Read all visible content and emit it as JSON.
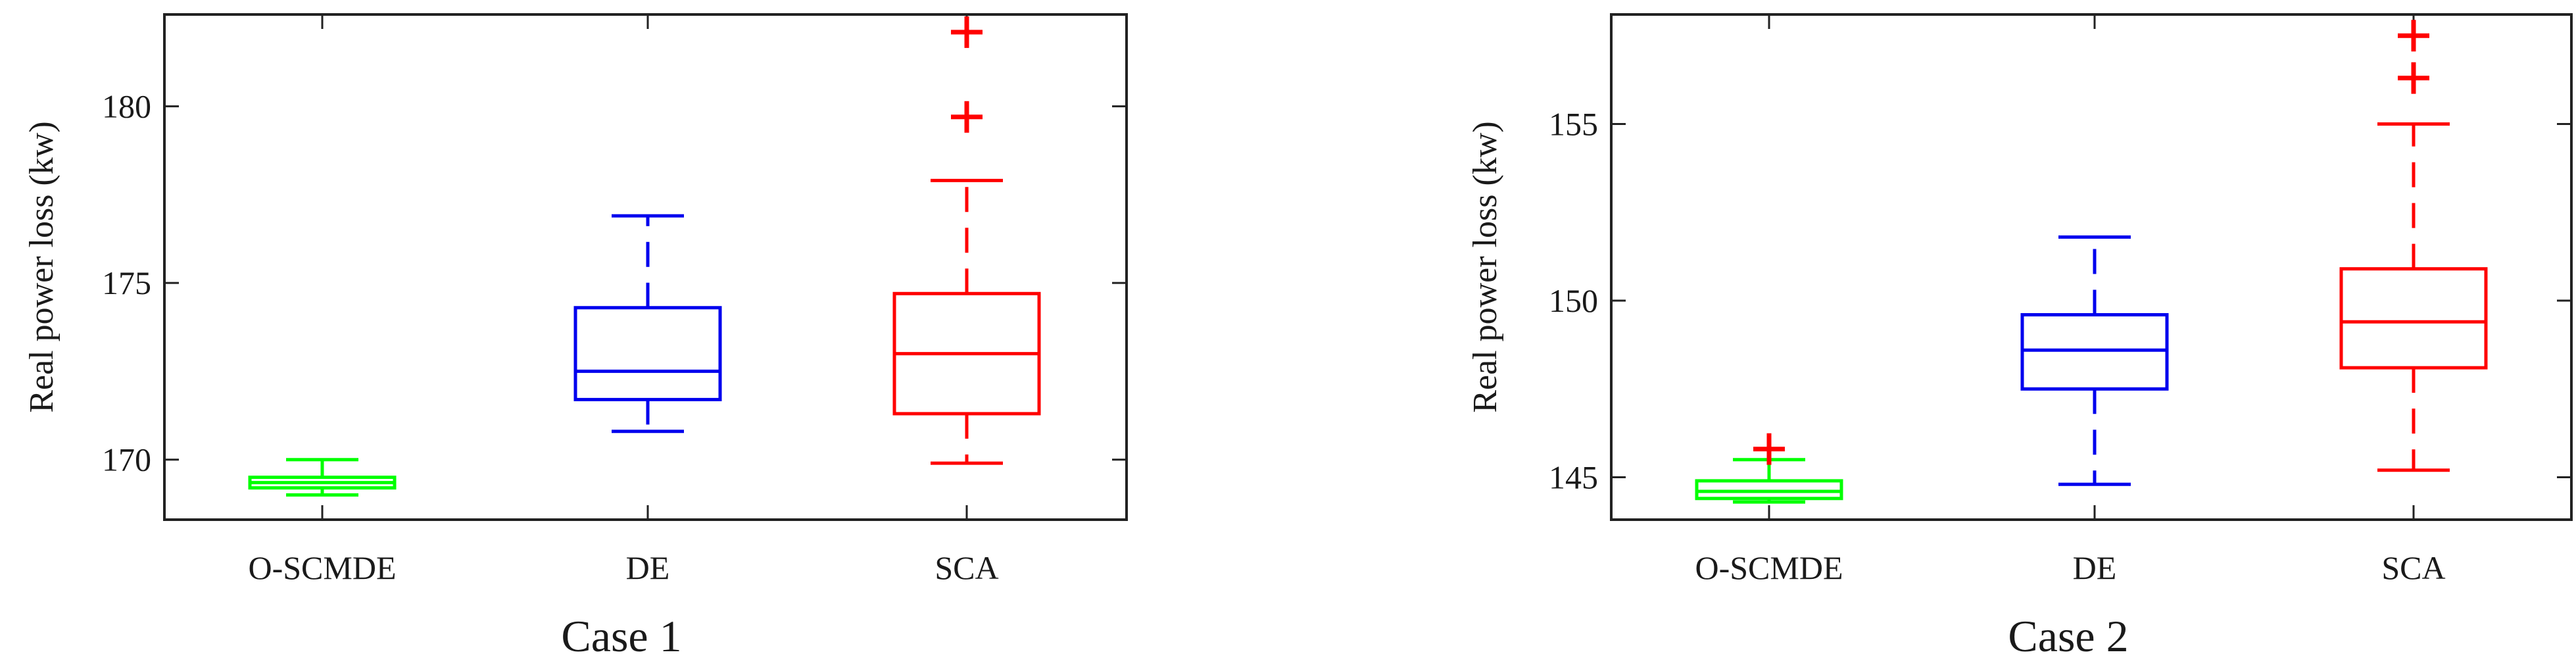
{
  "chart_data": [
    {
      "type": "box",
      "title": "Case 1",
      "ylabel": "Real power loss (kw)",
      "xlabel": "",
      "ylim": [
        168.3,
        182.6
      ],
      "yticks": [
        170,
        175,
        180
      ],
      "grid": false,
      "categories": [
        "O-SCMDE",
        "DE",
        "SCA"
      ],
      "series": [
        {
          "category": "O-SCMDE",
          "color": "#00ff00",
          "whisker_low": 169.0,
          "q1": 169.2,
          "median": 169.35,
          "q3": 169.5,
          "whisker_high": 170.0,
          "outliers": []
        },
        {
          "category": "DE",
          "color": "#0000ee",
          "whisker_low": 170.8,
          "q1": 171.7,
          "median": 172.5,
          "q3": 174.3,
          "whisker_high": 176.9,
          "outliers": []
        },
        {
          "category": "SCA",
          "color": "#ff0000",
          "whisker_low": 169.9,
          "q1": 171.3,
          "median": 173.0,
          "q3": 174.7,
          "whisker_high": 177.9,
          "outliers": [
            179.7,
            182.1
          ]
        }
      ]
    },
    {
      "type": "box",
      "title": "Case 2",
      "ylabel": "Real power loss (kw)",
      "xlabel": "",
      "ylim": [
        143.8,
        158.1
      ],
      "yticks": [
        145,
        150,
        155
      ],
      "grid": false,
      "categories": [
        "O-SCMDE",
        "DE",
        "SCA"
      ],
      "series": [
        {
          "category": "O-SCMDE",
          "color": "#00ff00",
          "whisker_low": 144.3,
          "q1": 144.4,
          "median": 144.6,
          "q3": 144.9,
          "whisker_high": 145.5,
          "outliers": [
            145.8
          ]
        },
        {
          "category": "DE",
          "color": "#0000ee",
          "whisker_low": 144.8,
          "q1": 147.5,
          "median": 148.6,
          "q3": 149.6,
          "whisker_high": 151.8,
          "outliers": []
        },
        {
          "category": "SCA",
          "color": "#ff0000",
          "whisker_low": 145.2,
          "q1": 148.1,
          "median": 149.4,
          "q3": 150.9,
          "whisker_high": 155.0,
          "outliers": [
            156.3,
            157.5
          ]
        }
      ]
    }
  ]
}
